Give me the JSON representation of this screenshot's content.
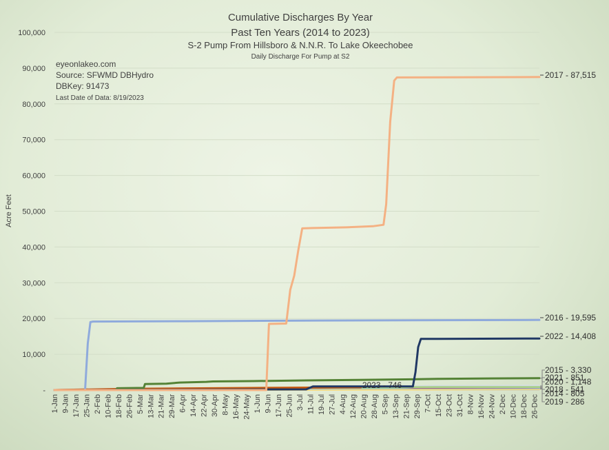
{
  "chart_data": {
    "type": "line",
    "title": "Cumulative Discharges By Year",
    "subtitle": "Past Ten Years (2014 to 2023)",
    "subtitle2": "S-2 Pump From Hillsboro & N.N.R. To Lake Okeechobee",
    "subtitle3": "Daily Discharge For Pump at S2",
    "ylabel": "Acre Feet",
    "ylim": [
      0,
      100000
    ],
    "yticks": [
      "-",
      "10,000",
      "20,000",
      "30,000",
      "40,000",
      "50,000",
      "60,000",
      "70,000",
      "80,000",
      "90,000",
      "100,000"
    ],
    "xticks": [
      "1-Jan",
      "9-Jan",
      "17-Jan",
      "25-Jan",
      "2-Feb",
      "10-Feb",
      "18-Feb",
      "26-Feb",
      "5-Mar",
      "13-Mar",
      "21-Mar",
      "29-Mar",
      "6-Apr",
      "14-Apr",
      "22-Apr",
      "30-Apr",
      "8-May",
      "16-May",
      "24-May",
      "1-Jun",
      "9-Jun",
      "17-Jun",
      "25-Jun",
      "3-Jul",
      "11-Jul",
      "19-Jul",
      "27-Jul",
      "4-Aug",
      "12-Aug",
      "20-Aug",
      "28-Aug",
      "5-Sep",
      "13-Sep",
      "21-Sep",
      "29-Sep",
      "7-Oct",
      "15-Oct",
      "23-Oct",
      "31-Oct",
      "8-Nov",
      "16-Nov",
      "24-Nov",
      "2-Dec",
      "10-Dec",
      "18-Dec",
      "26-Dec"
    ],
    "info": [
      "eyeonlakeo.com",
      "Source: SFWMD DBHydro",
      "DBKey: 91473",
      "Last Date of Data: 8/19/2023"
    ],
    "series": [
      {
        "name": "2017",
        "label": "2017 - 87,515",
        "color": "#f4b183",
        "points": [
          [
            1,
            0
          ],
          [
            160,
            0
          ],
          [
            162,
            18500
          ],
          [
            175,
            18600
          ],
          [
            178,
            28000
          ],
          [
            181,
            32000
          ],
          [
            184,
            39000
          ],
          [
            187,
            45200
          ],
          [
            195,
            45300
          ],
          [
            220,
            45500
          ],
          [
            240,
            45800
          ],
          [
            248,
            46200
          ],
          [
            250,
            52000
          ],
          [
            253,
            75000
          ],
          [
            256,
            86500
          ],
          [
            258,
            87400
          ],
          [
            365,
            87515
          ]
        ]
      },
      {
        "name": "2016",
        "label": "2016 - 19,595",
        "color": "#8faadc",
        "points": [
          [
            1,
            0
          ],
          [
            24,
            0
          ],
          [
            26,
            13000
          ],
          [
            28,
            19000
          ],
          [
            30,
            19150
          ],
          [
            100,
            19250
          ],
          [
            200,
            19450
          ],
          [
            365,
            19595
          ]
        ]
      },
      {
        "name": "2022",
        "label": "2022 - 14,408",
        "color": "#203864",
        "points": [
          [
            1,
            0
          ],
          [
            190,
            200
          ],
          [
            195,
            1000
          ],
          [
            270,
            1000
          ],
          [
            272,
            5000
          ],
          [
            274,
            12000
          ],
          [
            276,
            14300
          ],
          [
            365,
            14408
          ]
        ]
      },
      {
        "name": "2015",
        "label": "2015 - 3,330",
        "color": "#548235",
        "points": [
          [
            1,
            0
          ],
          [
            47,
            0
          ],
          [
            48,
            500
          ],
          [
            68,
            600
          ],
          [
            69,
            1700
          ],
          [
            85,
            1800
          ],
          [
            95,
            2100
          ],
          [
            115,
            2300
          ],
          [
            120,
            2400
          ],
          [
            150,
            2500
          ],
          [
            190,
            2700
          ],
          [
            230,
            2850
          ],
          [
            270,
            3000
          ],
          [
            290,
            3150
          ],
          [
            330,
            3250
          ],
          [
            365,
            3330
          ]
        ]
      },
      {
        "name": "2021",
        "label": "2021 - 851",
        "color": "#a9d18e",
        "points": [
          [
            1,
            0
          ],
          [
            100,
            300
          ],
          [
            200,
            600
          ],
          [
            260,
            700
          ],
          [
            270,
            820
          ],
          [
            365,
            851
          ]
        ]
      },
      {
        "name": "2020",
        "label": "2020 - 1,148",
        "color": "#d6dce5",
        "points": [
          [
            1,
            0
          ],
          [
            270,
            900
          ],
          [
            280,
            1100
          ],
          [
            365,
            1148
          ]
        ]
      },
      {
        "name": "2018",
        "label": "2018 - 541",
        "color": "#9dc3e6",
        "points": [
          [
            1,
            0
          ],
          [
            150,
            300
          ],
          [
            250,
            500
          ],
          [
            365,
            541
          ]
        ]
      },
      {
        "name": "2014",
        "label": "2014 - 805",
        "color": "#c00000",
        "points": [
          [
            1,
            0
          ],
          [
            60,
            200
          ],
          [
            150,
            500
          ],
          [
            220,
            700
          ],
          [
            365,
            805
          ]
        ]
      },
      {
        "name": "2019",
        "label": "2019 - 286",
        "color": "#ffd966",
        "points": [
          [
            1,
            0
          ],
          [
            200,
            150
          ],
          [
            365,
            286
          ]
        ]
      },
      {
        "name": "2023",
        "label": "2023 - 746",
        "color": "#c55a11",
        "points": [
          [
            1,
            0
          ],
          [
            50,
            300
          ],
          [
            120,
            500
          ],
          [
            200,
            700
          ],
          [
            231,
            746
          ]
        ]
      }
    ]
  }
}
